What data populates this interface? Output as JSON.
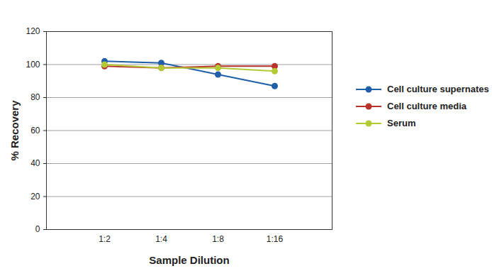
{
  "chart_data": {
    "type": "line",
    "x_label": "Sample Dilution",
    "y_label": "% Recovery",
    "categories": [
      "1:2",
      "1:4",
      "1:8",
      "1:16"
    ],
    "series": [
      {
        "name": "Cell culture supernates",
        "color": "#1f5ea8",
        "values": [
          102,
          101,
          94,
          87
        ]
      },
      {
        "name": "Cell culture media",
        "color": "#b8312b",
        "values": [
          99,
          98,
          99,
          99
        ]
      },
      {
        "name": "Serum",
        "color": "#b4c936",
        "values": [
          100,
          98,
          98,
          96
        ]
      }
    ],
    "ylim": [
      0,
      120
    ],
    "yticks": [
      0,
      20,
      40,
      60,
      80,
      100,
      120
    ],
    "grid": true,
    "legend": "right",
    "marker": "circle"
  }
}
